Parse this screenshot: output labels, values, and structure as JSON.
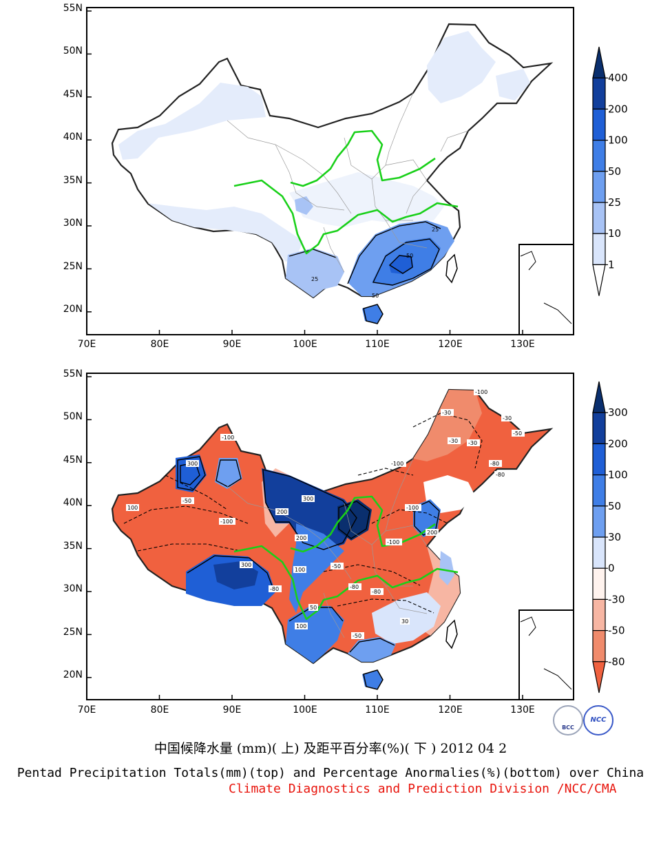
{
  "maps": [
    {
      "id": "top",
      "lat_ticks": [
        "55N",
        "50N",
        "45N",
        "40N",
        "35N",
        "30N",
        "25N",
        "20N"
      ],
      "lon_ticks": [
        "70E",
        "80E",
        "90E",
        "100E",
        "110E",
        "120E",
        "130E"
      ],
      "legend_labels": [
        "400",
        "200",
        "100",
        "50",
        "25",
        "10",
        "1"
      ],
      "legend_colors": [
        "#0a2f6e",
        "#123f9c",
        "#1f5fd6",
        "#3f7ee6",
        "#6e9ff0",
        "#a8c3f5",
        "#d9e5fb",
        "#ffffff"
      ],
      "contour_labels": [
        "25",
        "50",
        "25",
        "50"
      ]
    },
    {
      "id": "bottom",
      "lat_ticks": [
        "55N",
        "50N",
        "45N",
        "40N",
        "35N",
        "30N",
        "25N",
        "20N"
      ],
      "lon_ticks": [
        "70E",
        "80E",
        "90E",
        "100E",
        "110E",
        "120E",
        "130E"
      ],
      "legend_labels": [
        "300",
        "200",
        "100",
        "50",
        "30",
        "0",
        "-30",
        "-50",
        "-80"
      ],
      "legend_colors": [
        "#0a2f6e",
        "#123f9c",
        "#1f5fd6",
        "#3f7ee6",
        "#6e9ff0",
        "#d9e5fb",
        "#fff3ee",
        "#f7b6a3",
        "#f08b6c",
        "#f0613f"
      ],
      "contour_labels": [
        "-100",
        "-30",
        "-50",
        "-80",
        "-100",
        "300",
        "200",
        "100",
        "300",
        "-80",
        "-100",
        "-50",
        "-30",
        "100",
        "-100",
        "-30",
        "-50",
        "-100",
        "50",
        "-50",
        "200",
        "30",
        "-80",
        "300",
        "200",
        "-30",
        "-80",
        "100",
        "-80",
        "-100"
      ]
    }
  ],
  "caption": {
    "chinese": "中国候降水量 (mm)( 上) 及距平百分率(%)( 下 ) 2012 04 2",
    "english": "Pentad Precipitation Totals(mm)(top) and Percentage Anormalies(%)(bottom) over China",
    "organization": "Climate Diagnostics and Prediction Division /NCC/CMA"
  },
  "logos": {
    "left_text": "BCC",
    "right_text": "NCC"
  }
}
